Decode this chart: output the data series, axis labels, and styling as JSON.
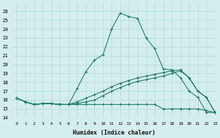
{
  "x": [
    0,
    1,
    2,
    3,
    4,
    5,
    6,
    7,
    8,
    9,
    10,
    11,
    12,
    13,
    14,
    15,
    16,
    17,
    18,
    19,
    20,
    21,
    22,
    23
  ],
  "line1": [
    16.2,
    15.8,
    15.5,
    15.6,
    15.6,
    15.5,
    15.5,
    17.3,
    19.2,
    20.5,
    21.1,
    24.0,
    25.8,
    25.4,
    25.2,
    23.0,
    21.8,
    19.5,
    19.4,
    18.5,
    17.0,
    16.3,
    14.6,
    14.6
  ],
  "line2": [
    16.2,
    15.8,
    15.5,
    15.6,
    15.6,
    15.5,
    15.5,
    15.5,
    15.5,
    15.5,
    15.5,
    15.5,
    15.5,
    15.5,
    15.5,
    15.5,
    15.5,
    15.0,
    15.0,
    15.0,
    15.0,
    15.0,
    14.8,
    14.6
  ],
  "line3": [
    16.2,
    15.8,
    15.5,
    15.6,
    15.6,
    15.5,
    15.5,
    15.6,
    15.8,
    16.0,
    16.5,
    17.0,
    17.4,
    17.8,
    18.1,
    18.3,
    18.5,
    18.7,
    19.0,
    19.3,
    18.5,
    17.0,
    16.3,
    14.6
  ],
  "line4": [
    16.2,
    15.8,
    15.5,
    15.6,
    15.6,
    15.5,
    15.5,
    15.8,
    16.2,
    16.6,
    17.0,
    17.5,
    17.9,
    18.2,
    18.5,
    18.7,
    18.9,
    19.1,
    19.3,
    19.4,
    18.5,
    17.0,
    16.3,
    14.6
  ],
  "line_color": "#1a7a6a",
  "bg_color": "#d4eded",
  "grid_color": "#b0d8d8",
  "xlabel": "Humidex (Indice chaleur)",
  "ylim": [
    14,
    27
  ],
  "xlim": [
    -0.5,
    23
  ],
  "yticks": [
    14,
    15,
    16,
    17,
    18,
    19,
    20,
    21,
    22,
    23,
    24,
    25,
    26
  ],
  "xticks": [
    0,
    1,
    2,
    3,
    4,
    5,
    6,
    7,
    8,
    9,
    10,
    11,
    12,
    13,
    14,
    15,
    16,
    17,
    18,
    19,
    20,
    21,
    22,
    23
  ]
}
